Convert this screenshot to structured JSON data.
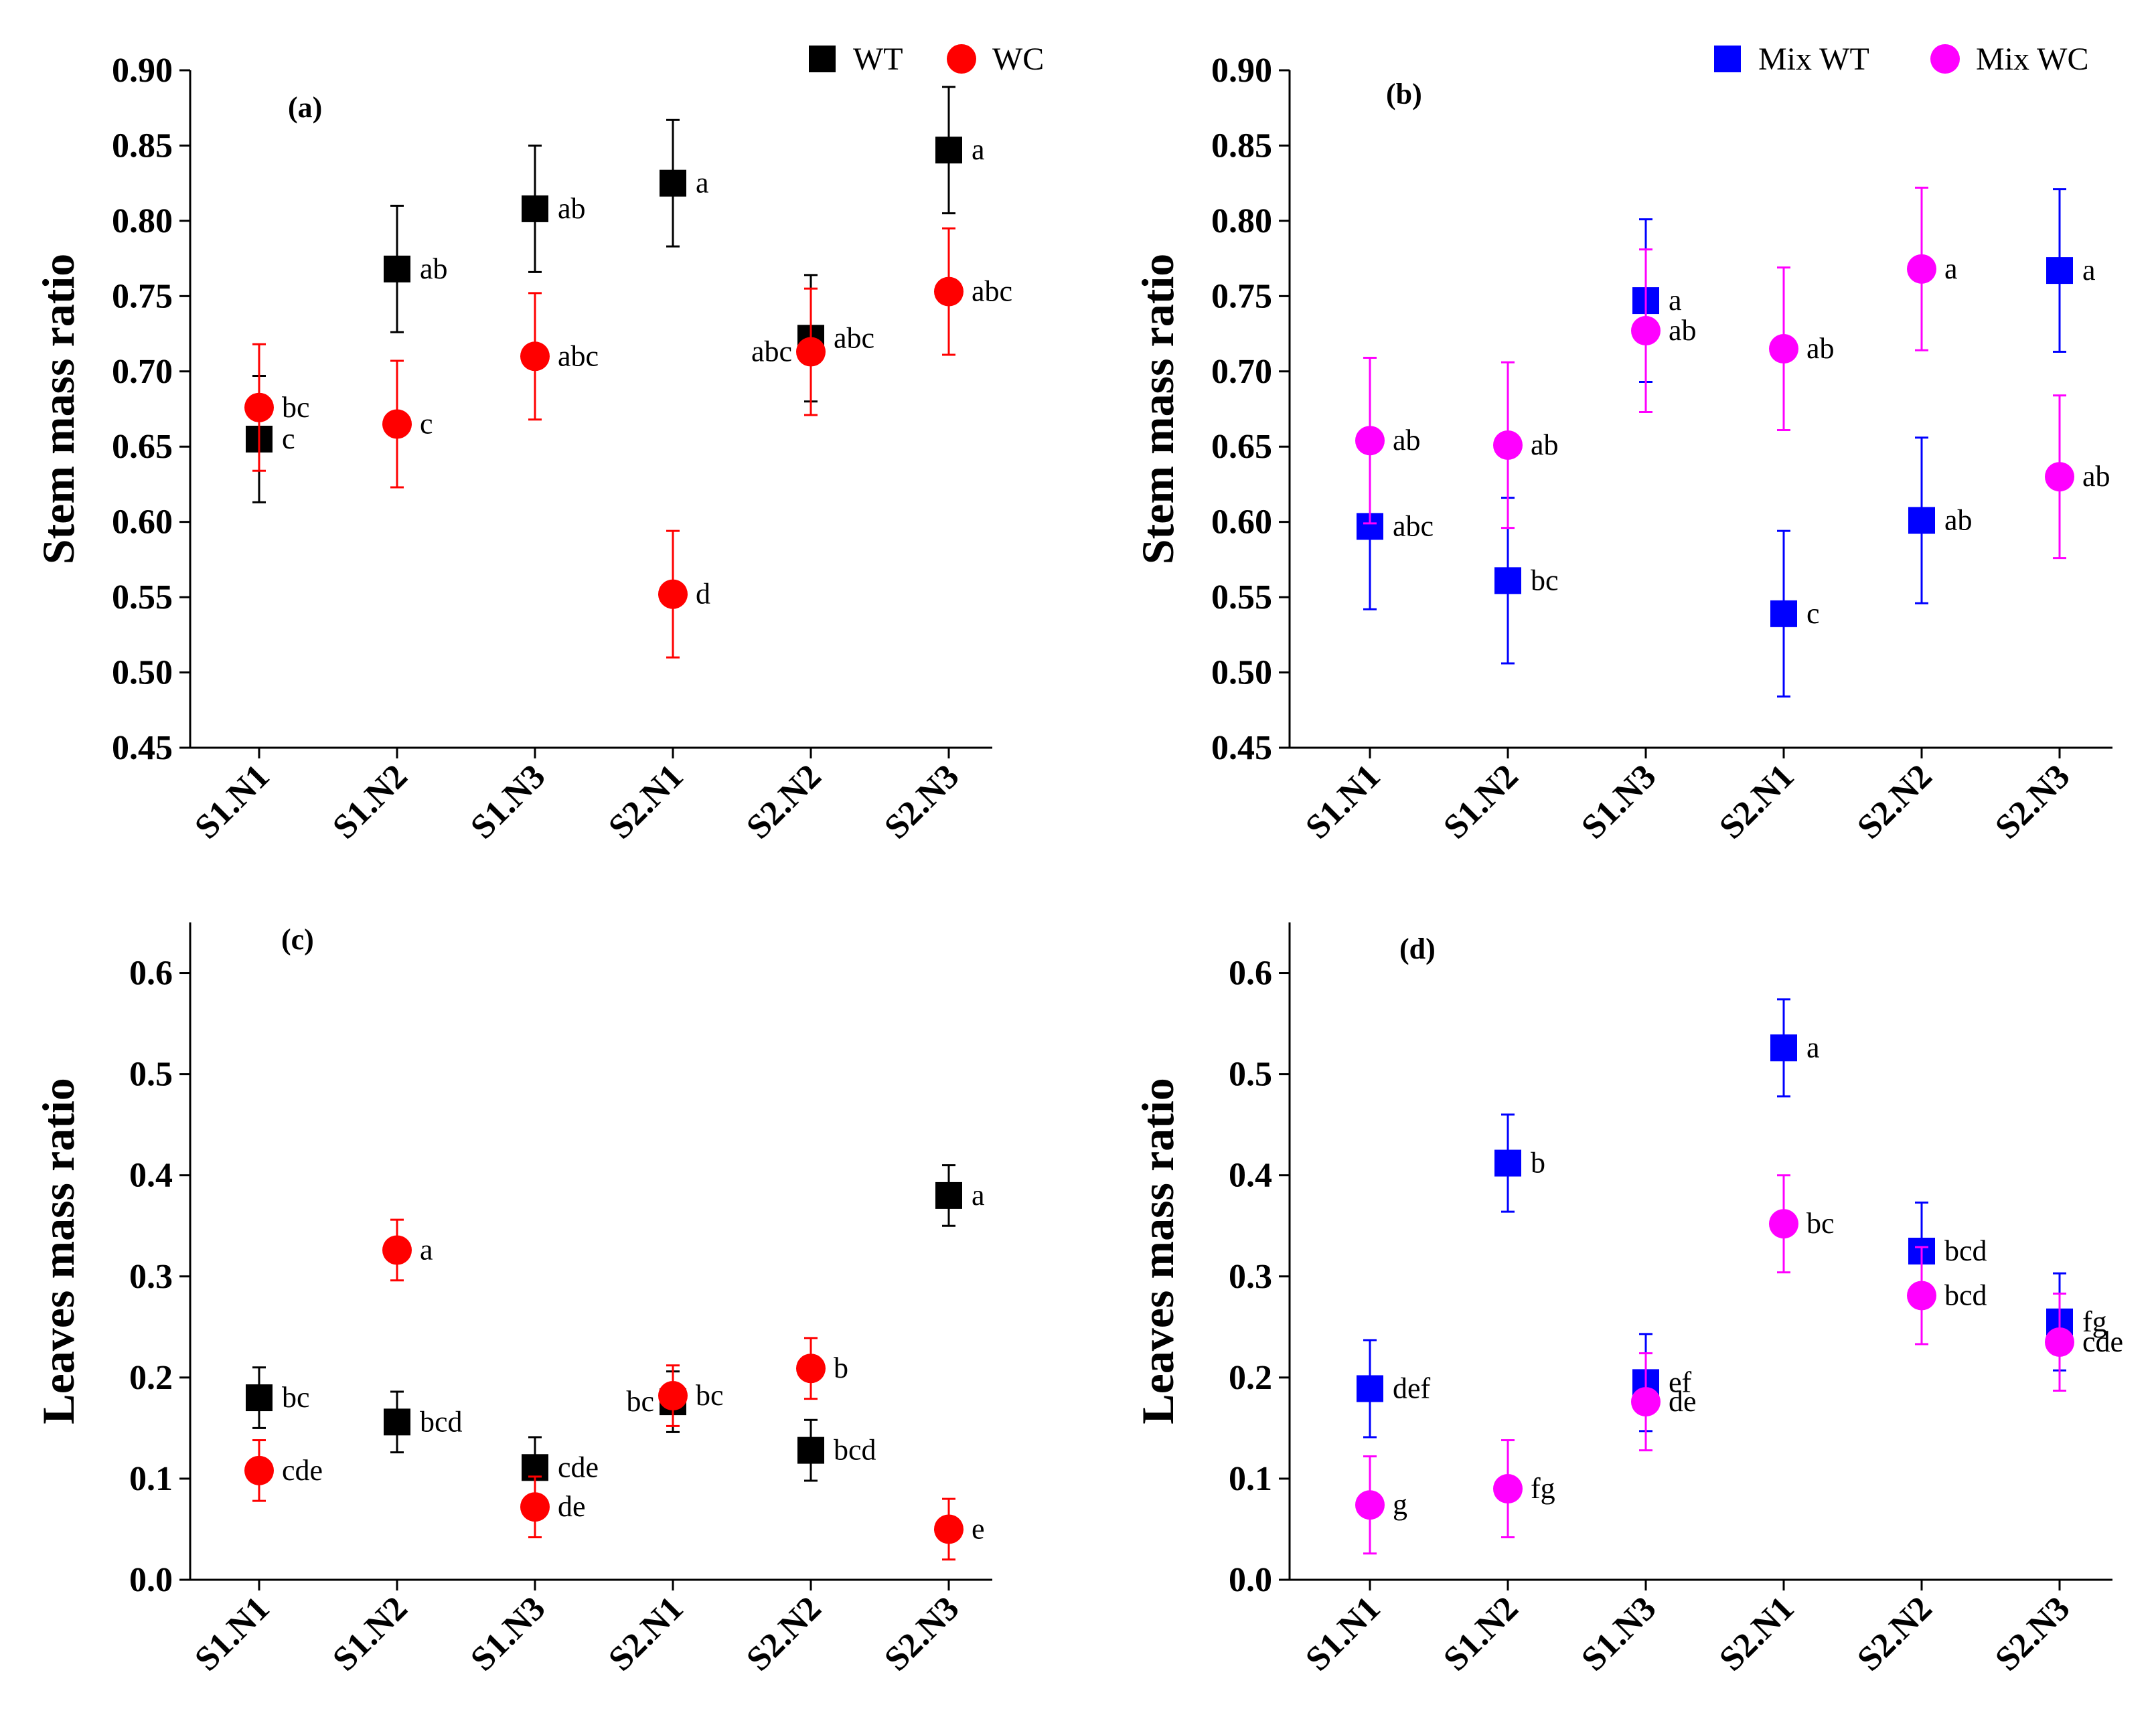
{
  "chart_data": [
    {
      "type": "scatter",
      "panel_label": "(a)",
      "ylabel": "Stem mass ratio",
      "ylim": [
        0.45,
        0.9
      ],
      "yticks": [
        0.45,
        0.5,
        0.55,
        0.6,
        0.65,
        0.7,
        0.75,
        0.8,
        0.85,
        0.9
      ],
      "categories": [
        "S1.N1",
        "S1.N2",
        "S1.N3",
        "S2.N1",
        "S2.N2",
        "S2.N3"
      ],
      "legend": {
        "placement": "top-right"
      },
      "series": [
        {
          "name": "WT",
          "marker": "square",
          "color": "#000000",
          "values": [
            0.655,
            0.768,
            0.808,
            0.825,
            0.722,
            0.847
          ],
          "errors": [
            0.042,
            0.042,
            0.042,
            0.042,
            0.042,
            0.042
          ],
          "letters": [
            "c",
            "ab",
            "ab",
            "a",
            "abc",
            "a"
          ],
          "letter_side": [
            "right",
            "right",
            "right",
            "right",
            "right",
            "right"
          ]
        },
        {
          "name": "WC",
          "marker": "circle",
          "color": "#ff0000",
          "values": [
            0.676,
            0.665,
            0.71,
            0.552,
            0.713,
            0.753
          ],
          "errors": [
            0.042,
            0.042,
            0.042,
            0.042,
            0.042,
            0.042
          ],
          "letters": [
            "bc",
            "c",
            "abc",
            "d",
            "abc",
            "abc"
          ],
          "letter_side": [
            "right",
            "right",
            "right",
            "right",
            "left",
            "right"
          ]
        }
      ]
    },
    {
      "type": "scatter",
      "panel_label": "(b)",
      "ylabel": "Stem mass ratio",
      "ylim": [
        0.45,
        0.9
      ],
      "yticks": [
        0.45,
        0.5,
        0.55,
        0.6,
        0.65,
        0.7,
        0.75,
        0.8,
        0.85,
        0.9
      ],
      "categories": [
        "S1.N1",
        "S1.N2",
        "S1.N3",
        "S2.N1",
        "S2.N2",
        "S2.N3"
      ],
      "legend": {
        "placement": "top-right"
      },
      "series": [
        {
          "name": "Mix WT",
          "marker": "square",
          "color": "#0000ff",
          "values": [
            0.597,
            0.561,
            0.747,
            0.539,
            0.601,
            0.767
          ],
          "errors": [
            0.055,
            0.055,
            0.054,
            0.055,
            0.055,
            0.054
          ],
          "letters": [
            "abc",
            "bc",
            "a",
            "c",
            "ab",
            "a"
          ],
          "letter_side": [
            "right",
            "right",
            "right",
            "right",
            "right",
            "right"
          ]
        },
        {
          "name": "Mix WC",
          "marker": "circle",
          "color": "#ff00ff",
          "values": [
            0.654,
            0.651,
            0.727,
            0.715,
            0.768,
            0.63
          ],
          "errors": [
            0.055,
            0.055,
            0.054,
            0.054,
            0.054,
            0.054
          ],
          "letters": [
            "ab",
            "ab",
            "ab",
            "ab",
            "a",
            "ab"
          ],
          "letter_side": [
            "right",
            "right",
            "right",
            "right",
            "right",
            "right"
          ]
        }
      ]
    },
    {
      "type": "scatter",
      "panel_label": "(c)",
      "ylabel": "Leaves mass ratio",
      "ylim": [
        0.0,
        0.65
      ],
      "yticks": [
        0.0,
        0.1,
        0.2,
        0.3,
        0.4,
        0.5,
        0.6
      ],
      "categories": [
        "S1.N1",
        "S1.N2",
        "S1.N3",
        "S2.N1",
        "S2.N2",
        "S2.N3"
      ],
      "series": [
        {
          "name": "WT",
          "marker": "square",
          "color": "#000000",
          "values": [
            0.18,
            0.156,
            0.111,
            0.176,
            0.128,
            0.38
          ],
          "errors": [
            0.03,
            0.03,
            0.03,
            0.03,
            0.03,
            0.03
          ],
          "letters": [
            "bc",
            "bcd",
            "cde",
            "bc",
            "bcd",
            "a"
          ],
          "letter_side": [
            "right",
            "right",
            "right",
            "left",
            "right",
            "right"
          ]
        },
        {
          "name": "WC",
          "marker": "circle",
          "color": "#ff0000",
          "values": [
            0.108,
            0.326,
            0.072,
            0.182,
            0.209,
            0.05
          ],
          "errors": [
            0.03,
            0.03,
            0.03,
            0.03,
            0.03,
            0.03
          ],
          "letters": [
            "cde",
            "a",
            "de",
            "bc",
            "b",
            "e"
          ],
          "letter_side": [
            "right",
            "right",
            "right",
            "right",
            "right",
            "right"
          ]
        }
      ]
    },
    {
      "type": "scatter",
      "panel_label": "(d)",
      "ylabel": "Leaves mass ratio",
      "ylim": [
        0.0,
        0.65
      ],
      "yticks": [
        0.0,
        0.1,
        0.2,
        0.3,
        0.4,
        0.5,
        0.6
      ],
      "categories": [
        "S1.N1",
        "S1.N2",
        "S1.N3",
        "S2.N1",
        "S2.N2",
        "S2.N3"
      ],
      "series": [
        {
          "name": "Mix WT",
          "marker": "square",
          "color": "#0000ff",
          "values": [
            0.189,
            0.412,
            0.195,
            0.526,
            0.325,
            0.255
          ],
          "errors": [
            0.048,
            0.048,
            0.048,
            0.048,
            0.048,
            0.048
          ],
          "letters": [
            "def",
            "b",
            "ef",
            "a",
            "bcd",
            "fg"
          ],
          "letter_side": [
            "right",
            "right",
            "right",
            "right",
            "right",
            "right"
          ]
        },
        {
          "name": "Mix WC",
          "marker": "circle",
          "color": "#ff00ff",
          "values": [
            0.074,
            0.09,
            0.176,
            0.352,
            0.281,
            0.235
          ],
          "errors": [
            0.048,
            0.048,
            0.048,
            0.048,
            0.048,
            0.048
          ],
          "letters": [
            "g",
            "fg",
            "de",
            "bc",
            "bcd",
            "cde"
          ],
          "letter_side": [
            "right",
            "right",
            "right",
            "right",
            "right",
            "right"
          ]
        }
      ]
    }
  ]
}
